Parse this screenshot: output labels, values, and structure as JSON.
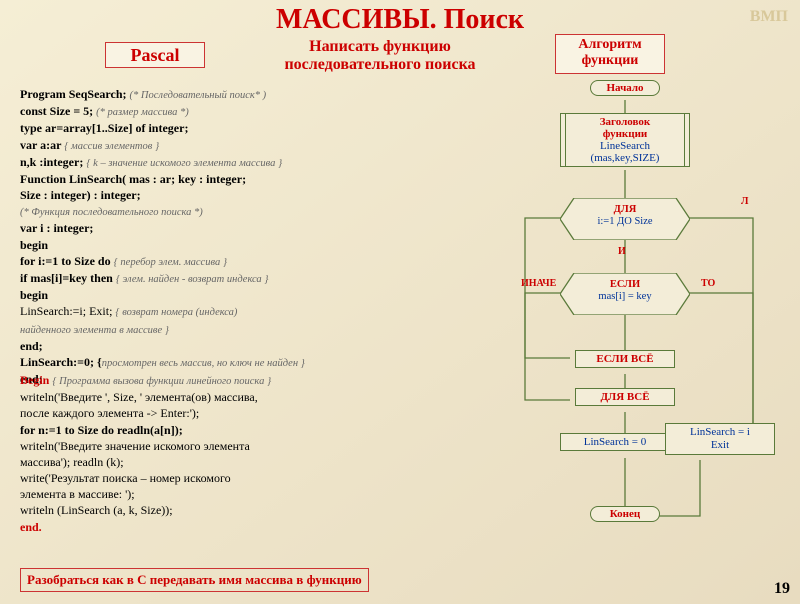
{
  "watermark": "ВМП",
  "title": {
    "text": "МАССИВЫ. Поиск",
    "fontsize": 28
  },
  "subtitle": {
    "line1": "Написать функцию",
    "line2": "последовательного поиска",
    "fontsize": 16
  },
  "boxes": {
    "pascal": "Pascal",
    "algo": {
      "l1": "Алгоритм",
      "l2": "функции"
    }
  },
  "code_lines": [
    {
      "t": "Program SeqSearch; ",
      "c": "(* Последовательный поиск* )",
      "kw": true
    },
    {
      "t": "const  Size = 5;  ",
      "c": "(* размер массива *)",
      "kw": true
    },
    {
      "t": "type  ar=array[1..Size] of integer;",
      "kw": true
    },
    {
      "t": "  var  a:ar ",
      "c": "{ массив элементов }",
      "kw": true
    },
    {
      "t": "  n,k :integer; ",
      "c": "{ k – значение искомого элемента массива }",
      "kw": true
    },
    {
      "t": "Function LinSearch( mas : ar;  key : integer;",
      "kw": true
    },
    {
      "t": "                              Size : integer) : integer;",
      "kw": true
    },
    {
      "t": "",
      "c": "(* Функция последовательного поиска *)"
    },
    {
      "t": "   var i : integer;",
      "kw": true
    },
    {
      "t": "begin",
      "kw": true
    },
    {
      "t": "   for i:=1 to Size do      ",
      "c": "{ перебор элем. массива }",
      "kw": true
    },
    {
      "t": "    if mas[i]=key then  ",
      "c": "{ элем. найден - возврат индекса }",
      "kw": true
    },
    {
      "t": "     begin",
      "kw": true
    },
    {
      "t": "       LinSearch:=i; Exit;  ",
      "c": "{ возврат номера (индекса)"
    },
    {
      "t": "",
      "c": "                                      найденного элемента в массиве }"
    },
    {
      "t": "     end;",
      "kw": true
    },
    {
      "t": "   LinSearch:=0; {",
      "c": "просмотрен весь массив, но ключ не найден }",
      "kw": true
    },
    {
      "t": "end;",
      "kw": true
    }
  ],
  "code_lines2": [
    {
      "t": "Begin ",
      "c": "{ Программа вызова функции линейного поиска }",
      "kw": true,
      "red": true
    },
    {
      "t": "    writeln('Введите ', Size, ' элемента(ов) массива,"
    },
    {
      "t": "после каждого элемента -> Enter:');"
    },
    {
      "t": "    for n:=1 to Size do       readln(a[n]);",
      "kw": true
    },
    {
      "t": "    writeln('Введите  значение  искомого  элемента"
    },
    {
      "t": "массива');             readln (k);"
    },
    {
      "t": "    write('Результат  поиска  –  номер  искомого"
    },
    {
      "t": "элемента в массиве:  ');"
    },
    {
      "t": "    writeln (LinSearch (a, k, Size));  "
    },
    {
      "t": "end.",
      "kw": true,
      "red": true
    }
  ],
  "bottom_note": "Разобраться как в C передавать имя массива в функцию",
  "pagenum": "19",
  "flow": {
    "start": "Начало",
    "header": {
      "l1": "Заголовок",
      "l2": "функции",
      "l3": "LineSearch",
      "l4": "(mas,key,SIZE)"
    },
    "loop": {
      "l1": "ДЛЯ",
      "l2": "i:=1 ДО Size"
    },
    "cond": {
      "l1": "ЕСЛИ",
      "l2": "mas[i] = key"
    },
    "labels": {
      "L": "Л",
      "I": "И",
      "INACHE": "ИНАЧЕ",
      "TO": "ТО"
    },
    "ifall": "ЕСЛИ ВСЁ",
    "forall": "ДЛЯ ВСЁ",
    "res0": "LinSearch = 0",
    "resi": {
      "l1": "LinSearch = i",
      "l2": "Exit"
    },
    "end": "Конец",
    "colors": {
      "stroke": "#5a7a3a",
      "fill": "#f3edd8"
    }
  }
}
